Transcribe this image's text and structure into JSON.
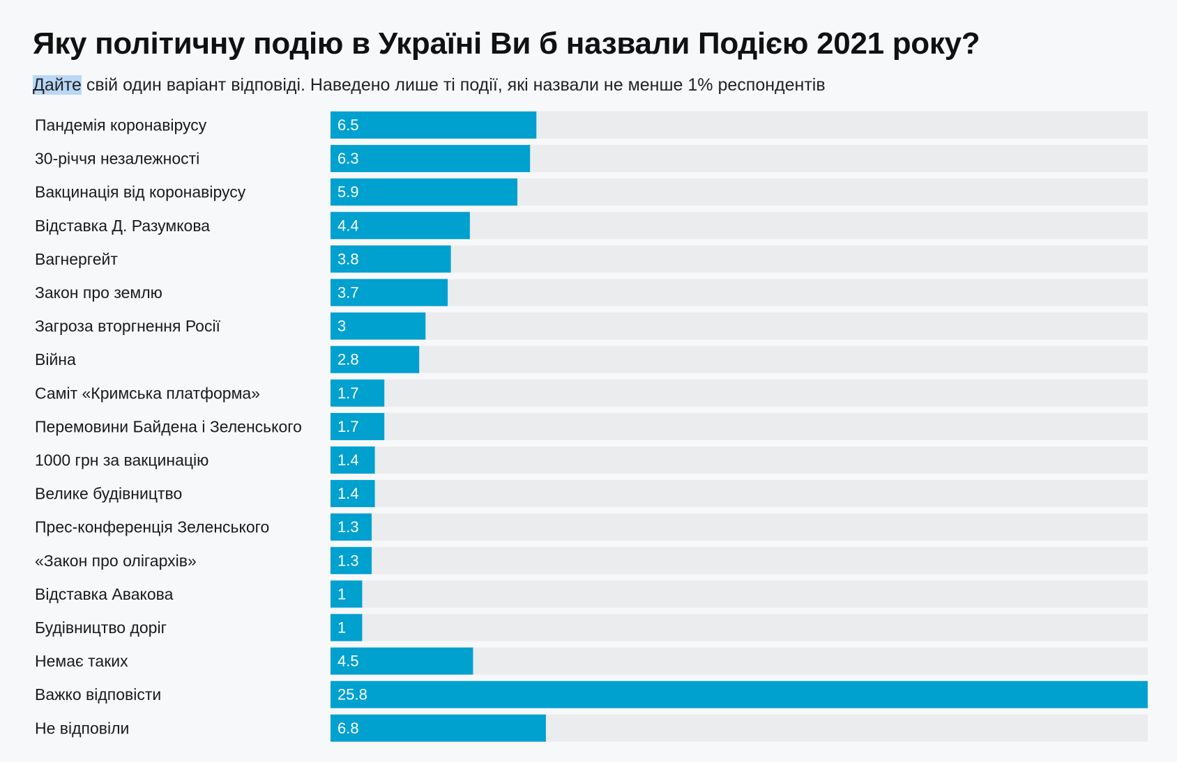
{
  "header": {
    "title": "Яку політичну подію в Україні Ви б назвали Подією 2021 року?",
    "subtitle_highlight": "Дайте",
    "subtitle_rest": " свій один варіант відповіді. Наведено лише ті події, які назвали не менше 1% респондентів"
  },
  "colors": {
    "bar": "#00a0cf",
    "track": "#ebecee",
    "background": "#f7f8fa",
    "value_text": "#ffffff"
  },
  "chart_data": {
    "type": "bar",
    "orientation": "horizontal",
    "categories": [
      "Пандемія коронавірусу",
      "30-річчя незалежності",
      "Вакцинація від коронавірусу",
      "Відставка Д. Разумкова",
      "Вагнергейт",
      "Закон про землю",
      "Загроза вторгнення Росії",
      "Війна",
      "Саміт «Кримська платформа»",
      "Перемовини Байдена і Зеленського",
      "1000 грн за вакцинацію",
      "Велике будівництво",
      "Прес-конференція Зеленського",
      "«Закон про олігархів»",
      "Відставка Авакова",
      "Будівництво доріг",
      "Немає таких",
      "Важко відповісти",
      "Не відповіли"
    ],
    "values": [
      6.5,
      6.3,
      5.9,
      4.4,
      3.8,
      3.7,
      3,
      2.8,
      1.7,
      1.7,
      1.4,
      1.4,
      1.3,
      1.3,
      1,
      1,
      4.5,
      25.8,
      6.8
    ],
    "value_labels": [
      "6.5",
      "6.3",
      "5.9",
      "4.4",
      "3.8",
      "3.7",
      "3",
      "2.8",
      "1.7",
      "1.7",
      "1.4",
      "1.4",
      "1.3",
      "1.3",
      "1",
      "1",
      "4.5",
      "25.8",
      "6.8"
    ],
    "xlim": [
      0,
      25.8
    ],
    "grid": false,
    "legend": "none"
  }
}
